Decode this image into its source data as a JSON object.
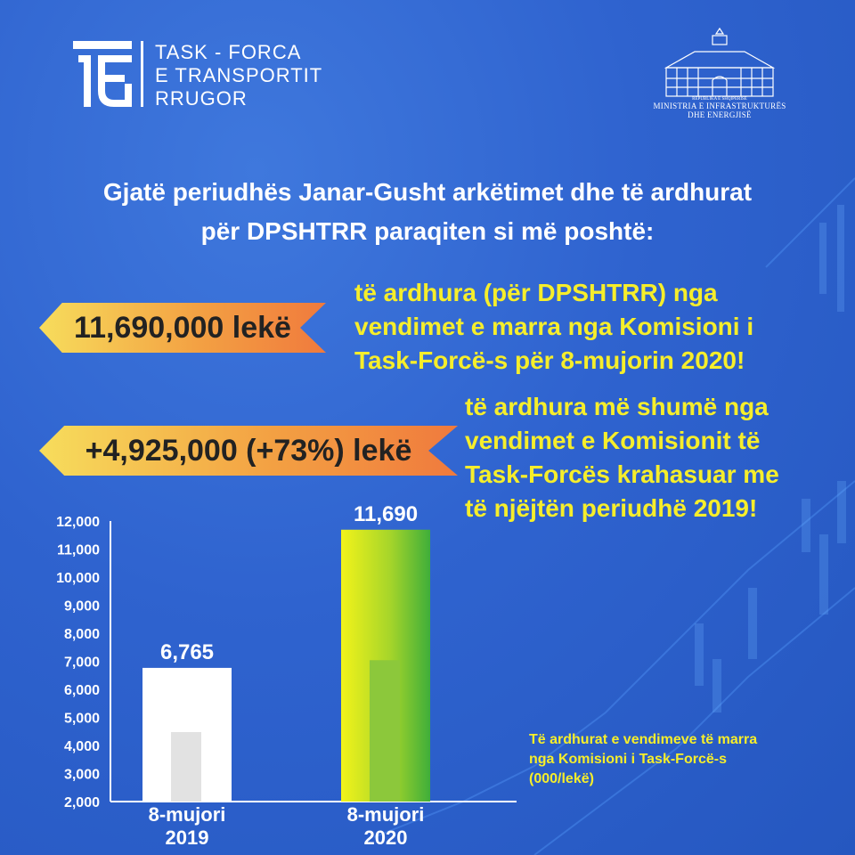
{
  "logo": {
    "line1": "TASK - FORCA",
    "line2": "E TRANSPORTIT",
    "line3": "RRUGOR"
  },
  "ministry": {
    "republic": "REPUBLIKA E SHQIPËRISË",
    "line1": "MINISTRIA E INFRASTRUKTURËS",
    "line2": "DHE ENERGJISË"
  },
  "headline": {
    "line1": "Gjatë periudhës Janar-Gusht arkëtimet dhe të ardhurat",
    "line2": "për DPSHTRR paraqiten si më poshtë:"
  },
  "highlight1": {
    "amount": "11,690,000 lekë",
    "text_lines": [
      "të ardhura (për DPSHTRR) nga",
      "vendimet e marra nga Komisioni i",
      "Task-Forcë-s për 8-mujorin 2020!"
    ]
  },
  "highlight2": {
    "amount": "+4,925,000 (+73%) lekë",
    "text_lines": [
      "të ardhura më shumë nga",
      "vendimet e Komisionit të",
      "Task-Forcës krahasuar me",
      "të njëjtën periudhë 2019!"
    ]
  },
  "note": {
    "lines": [
      "Të ardhurat e vendimeve të marra",
      "nga Komisioni i Task-Forcë-s",
      "(000/lekë)"
    ]
  },
  "colors": {
    "background": "#2f63cf",
    "highlight_text": "#f6ee2b",
    "ribbon_start": "#f7dd5c",
    "ribbon_end": "#f07a3d",
    "bar_2019": "#ffffff",
    "bar_2020_start": "#f2f31a",
    "bar_2020_end": "#3fae3a"
  },
  "chart_data": {
    "type": "bar",
    "categories": [
      [
        "8-mujori",
        "2019"
      ],
      [
        "8-mujori",
        "2020"
      ]
    ],
    "values": [
      6765,
      11690
    ],
    "value_labels": [
      "6,765",
      "11,690"
    ],
    "yticks": [
      "2,000",
      "3,000",
      "4,000",
      "5,000",
      "6,000",
      "7,000",
      "8,000",
      "9,000",
      "10,000",
      "11,000",
      "12,000"
    ],
    "ylim": [
      2000,
      12000
    ],
    "grid": false
  }
}
